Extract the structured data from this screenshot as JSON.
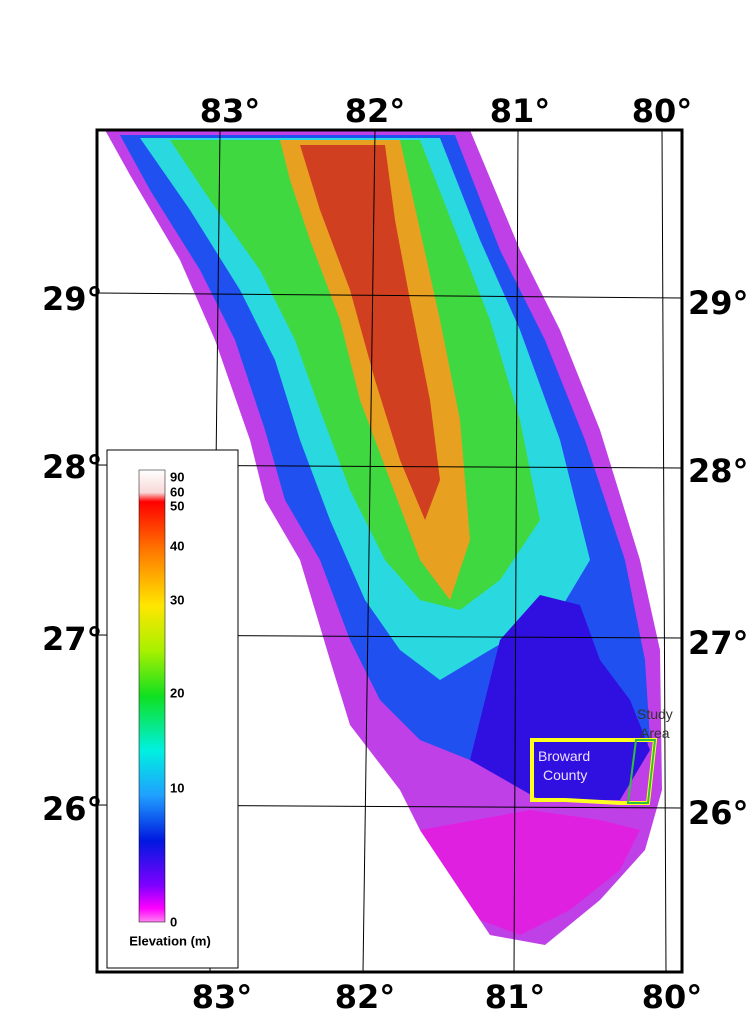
{
  "map": {
    "longitude_labels_top": [
      "83°",
      "82°",
      "81°",
      "80°"
    ],
    "longitude_labels_bottom": [
      "83°",
      "82°",
      "81°",
      "80°"
    ],
    "latitude_labels_left": [
      "29°",
      "28°",
      "27°",
      "26°"
    ],
    "latitude_labels_right": [
      "29°",
      "28°",
      "27°",
      "26°"
    ],
    "legend": {
      "labels": [
        90,
        60,
        50,
        40,
        30,
        20,
        10,
        0
      ],
      "title": "Elevation (m)"
    },
    "region_label": {
      "line1": "Broward",
      "line2": "County"
    },
    "study_label": {
      "line1": "Study",
      "line2": "Area"
    }
  }
}
